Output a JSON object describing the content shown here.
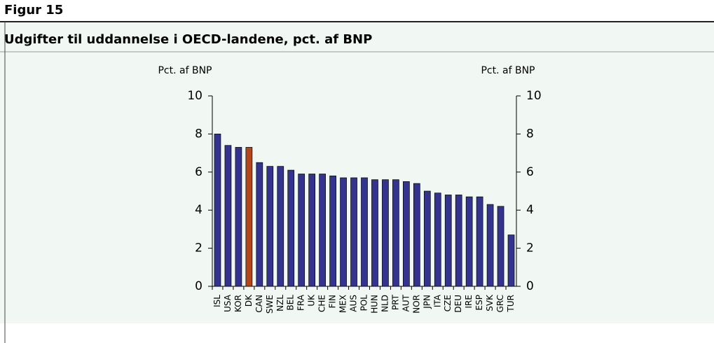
{
  "figure_label": "Figur 15",
  "chart_data": {
    "type": "bar",
    "title": "Udgifter til uddannelse i OECD-landene, pct. af BNP",
    "ylabel": "Pct. af BNP",
    "y2label": "Pct. af BNP",
    "categories": [
      "ISL",
      "USA",
      "KOR",
      "DK",
      "CAN",
      "SWE",
      "NZL",
      "BEL",
      "FRA",
      "UK",
      "CHE",
      "FIN",
      "MEX",
      "AUS",
      "POL",
      "HUN",
      "NLD",
      "PRT",
      "AUT",
      "NOR",
      "JPN",
      "ITA",
      "CZE",
      "DEU",
      "IRE",
      "ESP",
      "SVK",
      "GRC",
      "TUR"
    ],
    "values": [
      8.0,
      7.4,
      7.3,
      7.3,
      6.5,
      6.3,
      6.3,
      6.1,
      5.9,
      5.9,
      5.9,
      5.8,
      5.7,
      5.7,
      5.7,
      5.6,
      5.6,
      5.6,
      5.5,
      5.4,
      5.0,
      4.9,
      4.8,
      4.8,
      4.7,
      4.7,
      4.3,
      4.2,
      2.7
    ],
    "colors": [
      "#34348f",
      "#34348f",
      "#34348f",
      "#b3461c",
      "#34348f",
      "#34348f",
      "#34348f",
      "#34348f",
      "#34348f",
      "#34348f",
      "#34348f",
      "#34348f",
      "#34348f",
      "#34348f",
      "#34348f",
      "#34348f",
      "#34348f",
      "#34348f",
      "#34348f",
      "#34348f",
      "#34348f",
      "#34348f",
      "#34348f",
      "#34348f",
      "#34348f",
      "#34348f",
      "#34348f",
      "#34348f",
      "#34348f"
    ],
    "ylim": [
      0,
      10
    ],
    "yticks": [
      0,
      2,
      4,
      6,
      8,
      10
    ],
    "y2lim": [
      0,
      10
    ],
    "y2ticks": [
      0,
      2,
      4,
      6,
      8,
      10
    ]
  }
}
